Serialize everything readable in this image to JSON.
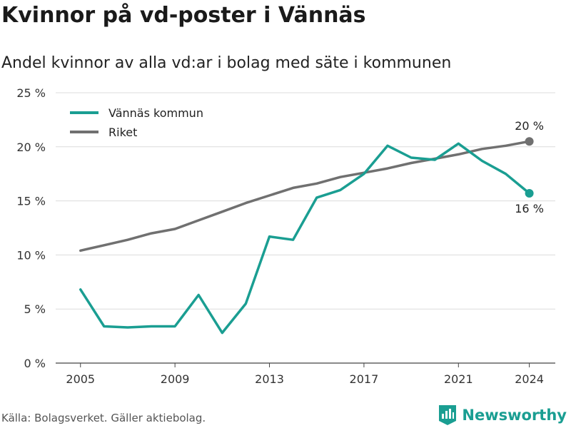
{
  "header": {
    "title": "Kvinnor på vd-poster i Vännäs",
    "subtitle": "Andel kvinnor av alla vd:ar i bolag med säte i kommunen"
  },
  "footer": {
    "source": "Källa: Bolagsverket. Gäller aktiebolag.",
    "brand": "Newsworthy"
  },
  "chart_data": {
    "type": "line",
    "title": "Kvinnor på vd-poster i Vännäs",
    "subtitle": "Andel kvinnor av alla vd:ar i bolag med säte i kommunen",
    "xlabel": "",
    "ylabel": "",
    "x": [
      2005,
      2006,
      2007,
      2008,
      2009,
      2010,
      2011,
      2012,
      2013,
      2014,
      2015,
      2016,
      2017,
      2018,
      2019,
      2020,
      2021,
      2022,
      2023,
      2024
    ],
    "x_ticks": [
      2005,
      2009,
      2013,
      2017,
      2021,
      2024
    ],
    "y_ticks": [
      0,
      5,
      10,
      15,
      20,
      25
    ],
    "y_tick_labels": [
      "0 %",
      "5 %",
      "10 %",
      "15 %",
      "20 %",
      "25 %"
    ],
    "ylim": [
      0,
      25
    ],
    "grid": true,
    "legend_position": "top-left",
    "series": [
      {
        "name": "Vännäs kommun",
        "color": "#1a9e92",
        "values": [
          6.8,
          3.4,
          3.3,
          3.4,
          3.4,
          6.3,
          2.8,
          5.5,
          11.7,
          11.4,
          15.3,
          16.0,
          17.5,
          20.1,
          19.0,
          18.8,
          20.3,
          18.7,
          17.5,
          15.7
        ],
        "end_label": "16 %"
      },
      {
        "name": "Riket",
        "color": "#707070",
        "values": [
          10.4,
          10.9,
          11.4,
          12.0,
          12.4,
          13.2,
          14.0,
          14.8,
          15.5,
          16.2,
          16.6,
          17.2,
          17.6,
          18.0,
          18.5,
          18.9,
          19.3,
          19.8,
          20.1,
          20.5
        ],
        "end_label": "20 %"
      }
    ]
  }
}
